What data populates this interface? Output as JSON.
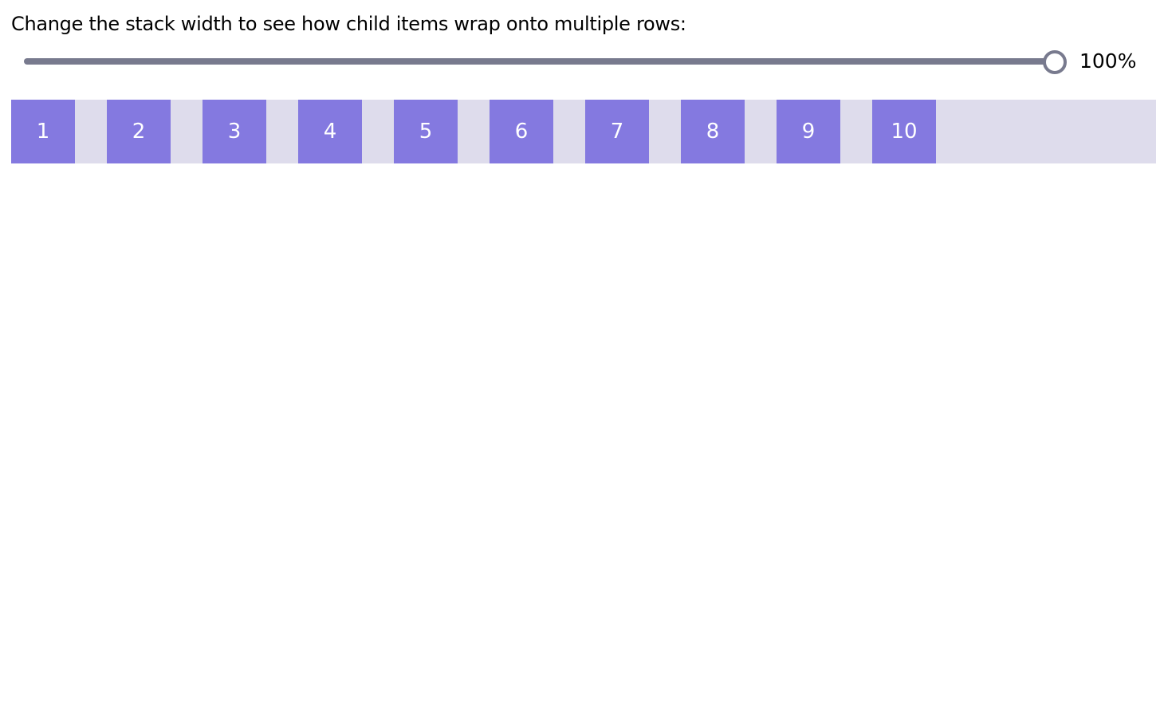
{
  "label": "Change the stack width to see how child items wrap onto multiple rows:",
  "slider": {
    "value_percent": 100,
    "value_label": "100%"
  },
  "colors": {
    "item": "#8479e0",
    "stack_bg": "#dedcec",
    "slider": "#787a8e"
  },
  "items": [
    "1",
    "2",
    "3",
    "4",
    "5",
    "6",
    "7",
    "8",
    "9",
    "10"
  ]
}
